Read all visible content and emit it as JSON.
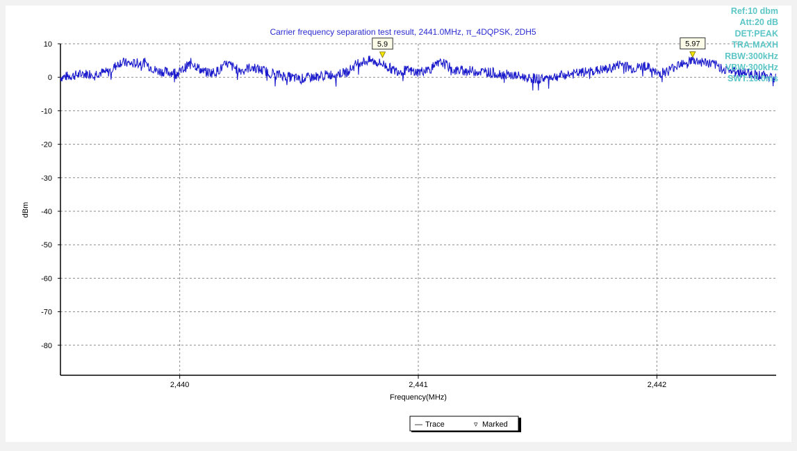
{
  "chart_data": {
    "type": "line",
    "title": "Carrier frequency separation test result, 2441.0MHz, π_4DQPSK, 2DH5",
    "xlabel": "Frequency(MHz)",
    "ylabel": "dBm",
    "xlim": [
      2439.5,
      2442.5
    ],
    "ylim": [
      -90,
      10
    ],
    "x_ticks": [
      2440,
      2441,
      2442
    ],
    "x_tick_labels": [
      "2,440",
      "2,441",
      "2,442"
    ],
    "y_ticks": [
      10,
      0,
      -10,
      -20,
      -30,
      -40,
      -50,
      -60,
      -70,
      -80
    ],
    "y_tick_labels": [
      "10",
      "0",
      "-10",
      "-20",
      "-30",
      "-40",
      "-50",
      "-60",
      "-70",
      "-80"
    ],
    "grid": true,
    "trace_color": "#1a1acc",
    "series": [
      {
        "name": "Trace",
        "x": [
          2439.5,
          2439.6,
          2439.7,
          2439.75,
          2439.8,
          2439.85,
          2439.9,
          2439.95,
          2440.0,
          2440.05,
          2440.1,
          2440.15,
          2440.2,
          2440.25,
          2440.3,
          2440.35,
          2440.4,
          2440.5,
          2440.6,
          2440.7,
          2440.75,
          2440.8,
          2440.85,
          2440.9,
          2440.95,
          2441.0,
          2441.05,
          2441.1,
          2441.15,
          2441.2,
          2441.3,
          2441.4,
          2441.5,
          2441.6,
          2441.7,
          2441.8,
          2441.85,
          2441.9,
          2441.95,
          2442.0,
          2442.05,
          2442.1,
          2442.15,
          2442.2,
          2442.25,
          2442.3,
          2442.4,
          2442.5
        ],
        "values": [
          0,
          1,
          1.5,
          4.5,
          4,
          4.5,
          2,
          1.5,
          1.5,
          4.5,
          1.5,
          1.5,
          4,
          2,
          3,
          2,
          1,
          -0.5,
          0.5,
          1.5,
          4.5,
          5,
          4,
          2,
          2,
          1.5,
          2.5,
          4.5,
          2,
          2,
          1.5,
          0.5,
          -0.5,
          0.5,
          1.5,
          2.5,
          4,
          2.5,
          3.5,
          1,
          2,
          4.5,
          5,
          4.5,
          3.5,
          2,
          1,
          0
        ],
        "color": "#1a1acc"
      }
    ],
    "markers": [
      {
        "x": 2440.85,
        "y": 5.9,
        "label": "5.9"
      },
      {
        "x": 2442.15,
        "y": 5.97,
        "label": "5.97"
      }
    ],
    "settings": [
      "Ref:10 dbm",
      "Att:20 dB",
      "DET:PEAK",
      "TRA:MAXH",
      "RBW:300kHz",
      "VBW:300kHz",
      "SWT:10.0ms"
    ],
    "settings_color": "#5cc6c6",
    "legend": {
      "position": "bottom-center",
      "items": [
        {
          "symbol": "—",
          "label": "Trace"
        },
        {
          "symbol": "▿",
          "label": "Marked"
        }
      ]
    }
  }
}
